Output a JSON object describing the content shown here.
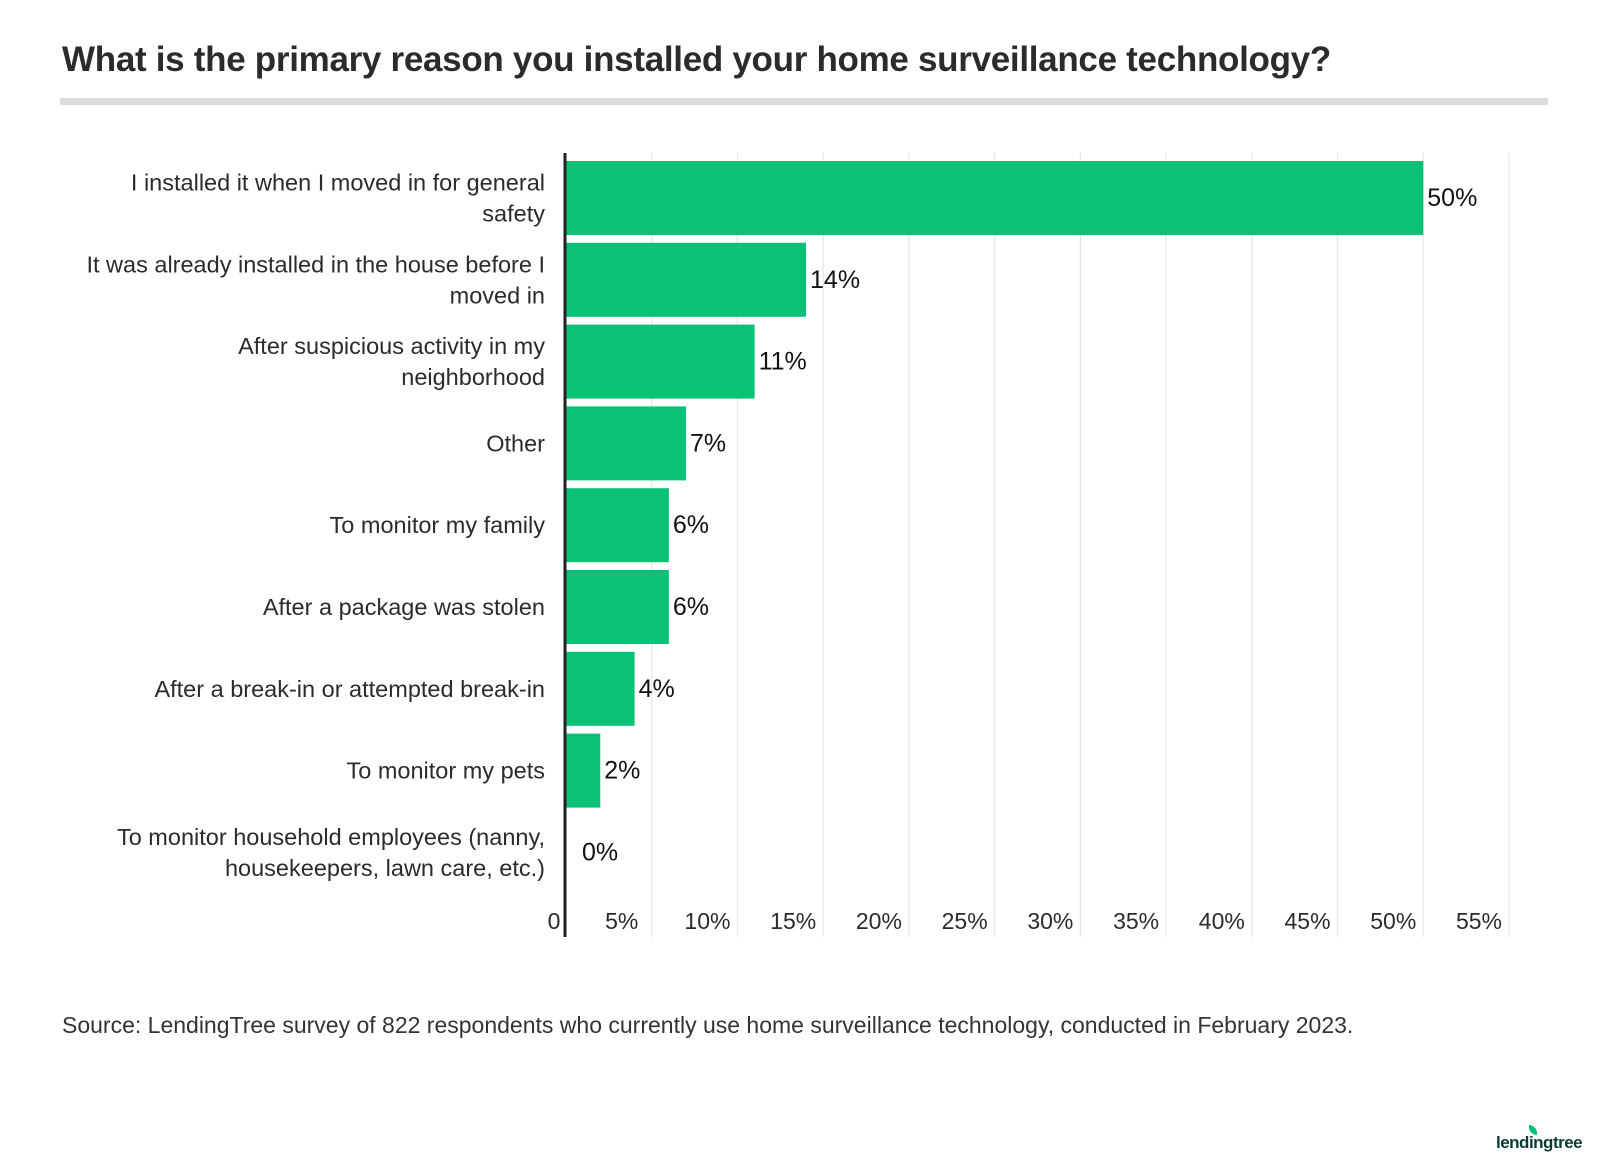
{
  "title": "What is the primary reason you installed your home surveillance technology?",
  "source": "Source: LendingTree survey of 822 respondents who currently use home surveillance technology, conducted in February 2023.",
  "brand": "lendingtree",
  "colors": {
    "bar": "#0bc176",
    "axis": "#222222",
    "grid": "#e6e6e6",
    "text": "#2b2b2b"
  },
  "chart_data": {
    "type": "bar",
    "orientation": "horizontal",
    "categories": [
      [
        "I installed it when I moved in for general",
        "safety"
      ],
      [
        "It was already installed in the house before I",
        "moved in"
      ],
      [
        "After suspicious activity in my",
        "neighborhood"
      ],
      [
        "Other"
      ],
      [
        "To monitor my family"
      ],
      [
        "After a package was stolen"
      ],
      [
        "After a break-in or attempted break-in"
      ],
      [
        "To monitor my pets"
      ],
      [
        "To monitor household employees (nanny,",
        "housekeepers, lawn care, etc.)"
      ]
    ],
    "values": [
      50,
      14,
      11,
      7,
      6,
      6,
      4,
      2,
      0
    ],
    "data_labels": [
      "50%",
      "14%",
      "11%",
      "7%",
      "6%",
      "6%",
      "4%",
      "2%",
      "0%"
    ],
    "xlim": [
      0,
      55
    ],
    "x_ticks": [
      0,
      5,
      10,
      15,
      20,
      25,
      30,
      35,
      40,
      45,
      50,
      55
    ],
    "x_tick_labels": [
      "0",
      "5%",
      "10%",
      "15%",
      "20%",
      "25%",
      "30%",
      "35%",
      "40%",
      "45%",
      "50%",
      "55%"
    ],
    "grid": true,
    "legend": "none"
  }
}
